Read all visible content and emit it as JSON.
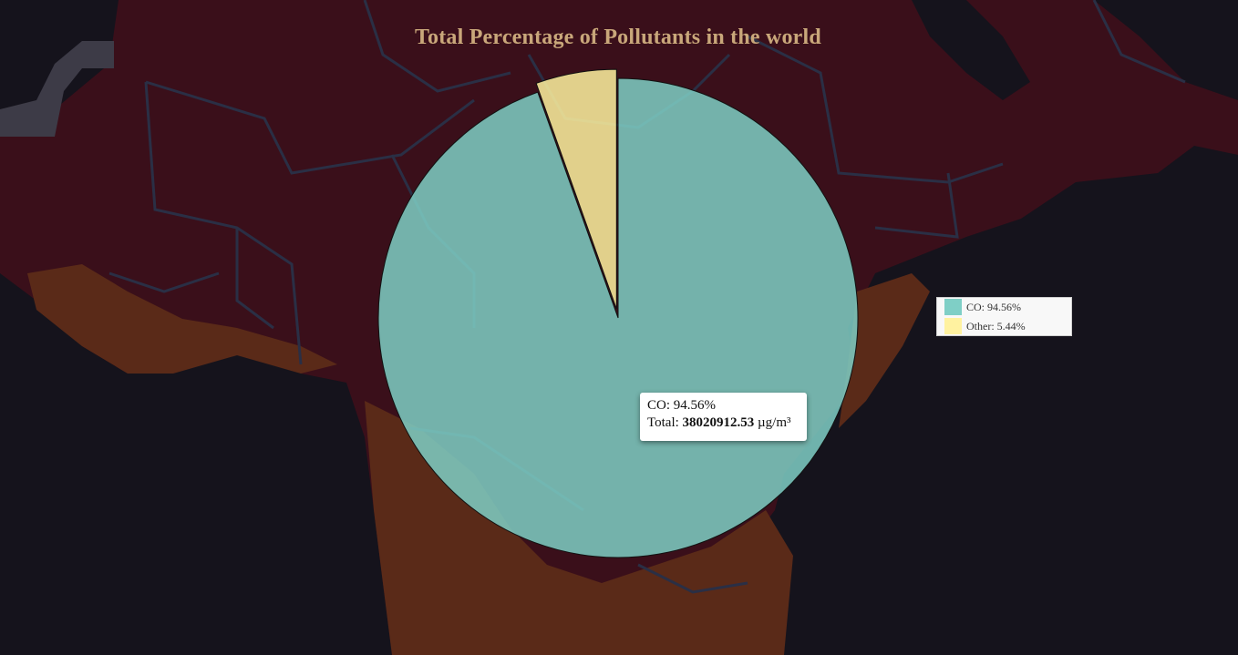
{
  "chart_data": {
    "type": "pie",
    "title": "Total Percentage of Pollutants in the world",
    "slices": [
      {
        "label": "CO",
        "value": 94.56,
        "legend_text": "CO: 94.56%",
        "color": "#7fcfc6"
      },
      {
        "label": "Other",
        "value": 5.44,
        "legend_text": "Other: 5.44%",
        "color": "#fff2a0"
      }
    ],
    "exploded_slice": "Other",
    "legend_position": "right",
    "tooltip": {
      "line1": "CO: 94.56%",
      "total_prefix": "Total:",
      "total_value": "38020912.53",
      "total_unit": "µg/m³"
    }
  },
  "colors": {
    "title": "#c9a77a",
    "background": "#15131c",
    "map_land": "#3a0f1a",
    "map_land_warm": "#5a2a18",
    "map_borders": "#2a2f45",
    "slice_border": "#111111"
  }
}
